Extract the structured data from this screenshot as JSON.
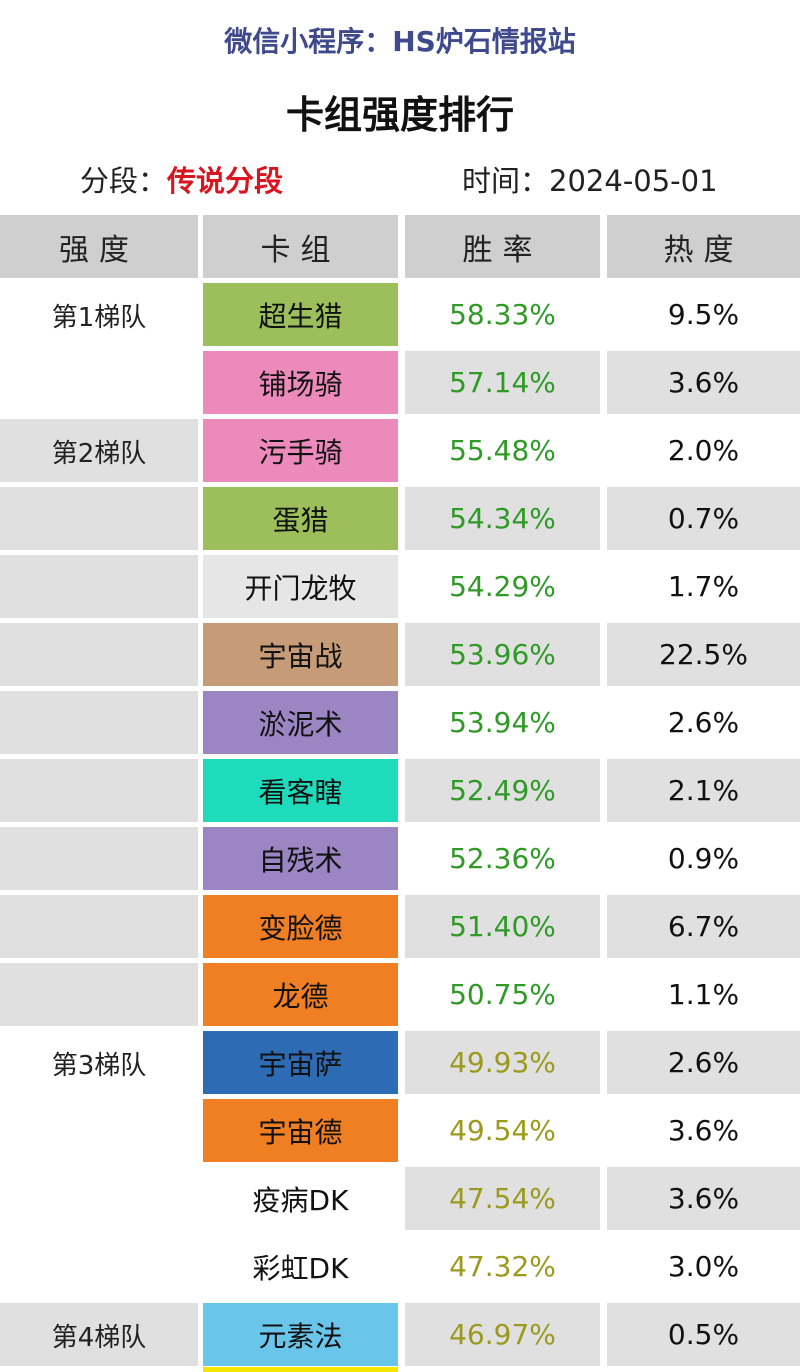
{
  "source": "微信小程序：HS炉石情报站",
  "title": "卡组强度排行",
  "meta": {
    "tier_label": "分段：",
    "tier_value": "传说分段",
    "time_label": "时间：",
    "time_value": "2024-05-01"
  },
  "headers": [
    "强度",
    "卡组",
    "胜率",
    "热度"
  ],
  "rows": [
    {
      "tier": "第1梯队",
      "deck": "超生猎",
      "deck_color": "#9cbf5b",
      "rate": "58.33%",
      "rate_color": "#2f9a26",
      "pop": "9.5%"
    },
    {
      "tier": "",
      "deck": "铺场骑",
      "deck_color": "#ec8abb",
      "rate": "57.14%",
      "rate_color": "#2f9a26",
      "pop": "3.6%"
    },
    {
      "tier": "第2梯队",
      "deck": "污手骑",
      "deck_color": "#ec8abb",
      "rate": "55.48%",
      "rate_color": "#2f9a26",
      "pop": "2.0%"
    },
    {
      "tier": "",
      "deck": "蛋猎",
      "deck_color": "#9cbf5b",
      "rate": "54.34%",
      "rate_color": "#2f9a26",
      "pop": "0.7%"
    },
    {
      "tier": "",
      "deck": "开门龙牧",
      "deck_color": "#e6e6e6",
      "rate": "54.29%",
      "rate_color": "#2f9a26",
      "pop": "1.7%"
    },
    {
      "tier": "",
      "deck": "宇宙战",
      "deck_color": "#c69c78",
      "rate": "53.96%",
      "rate_color": "#2f9a26",
      "pop": "22.5%"
    },
    {
      "tier": "",
      "deck": "淤泥术",
      "deck_color": "#9b85c2",
      "rate": "53.94%",
      "rate_color": "#2f9a26",
      "pop": "2.6%"
    },
    {
      "tier": "",
      "deck": "看客瞎",
      "deck_color": "#1ddbbb",
      "rate": "52.49%",
      "rate_color": "#2f9a26",
      "pop": "2.1%"
    },
    {
      "tier": "",
      "deck": "自残术",
      "deck_color": "#9b85c2",
      "rate": "52.36%",
      "rate_color": "#2f9a26",
      "pop": "0.9%"
    },
    {
      "tier": "",
      "deck": "变脸德",
      "deck_color": "#f07f24",
      "rate": "51.40%",
      "rate_color": "#2f9a26",
      "pop": "6.7%"
    },
    {
      "tier": "",
      "deck": "龙德",
      "deck_color": "#f07f24",
      "rate": "50.75%",
      "rate_color": "#2f9a26",
      "pop": "1.1%"
    },
    {
      "tier": "第3梯队",
      "deck": "宇宙萨",
      "deck_color": "#2e6bb5",
      "rate": "49.93%",
      "rate_color": "#9c9a1c",
      "pop": "2.6%"
    },
    {
      "tier": "",
      "deck": "宇宙德",
      "deck_color": "#f07f24",
      "rate": "49.54%",
      "rate_color": "#9c9a1c",
      "pop": "3.6%"
    },
    {
      "tier": "",
      "deck": "疫病DK",
      "deck_color": "#ffffff",
      "rate": "47.54%",
      "rate_color": "#9c9a1c",
      "pop": "3.6%"
    },
    {
      "tier": "",
      "deck": "彩虹DK",
      "deck_color": "#ffffff",
      "rate": "47.32%",
      "rate_color": "#9c9a1c",
      "pop": "3.0%"
    },
    {
      "tier": "第4梯队",
      "deck": "元素法",
      "deck_color": "#6ac5ea",
      "rate": "46.97%",
      "rate_color": "#9c9a1c",
      "pop": "0.5%"
    }
  ]
}
